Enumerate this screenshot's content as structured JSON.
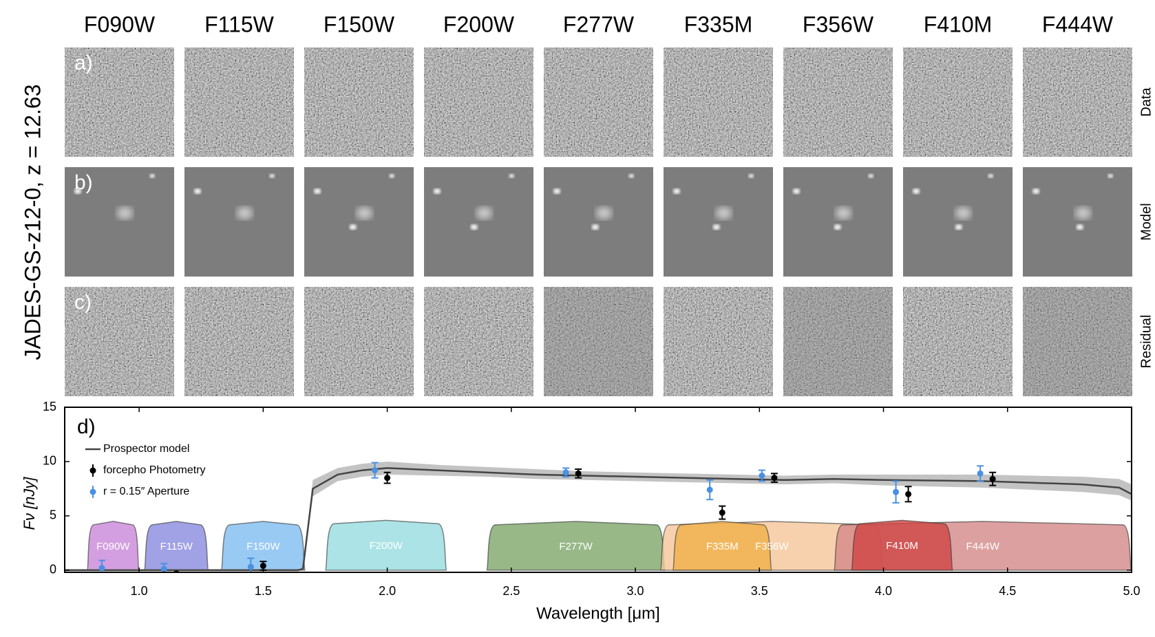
{
  "image_grid": {
    "title": "JADES-GS-z12-0, z = 12.63",
    "columns": [
      "F090W",
      "F115W",
      "F150W",
      "F200W",
      "F277W",
      "F335M",
      "F356W",
      "F410M",
      "F444W"
    ],
    "rows": [
      {
        "panel": "a)",
        "label": "Data"
      },
      {
        "panel": "b)",
        "label": "Model"
      },
      {
        "panel": "c)",
        "label": "Residual"
      }
    ]
  },
  "chart_data": {
    "type": "line",
    "panel": "d)",
    "xlabel": "Wavelength [μm]",
    "ylabel": "Fν [nJy]",
    "xlim": [
      0.7,
      5.0
    ],
    "ylim": [
      -0.2,
      15
    ],
    "xticks": [
      {
        "value": 1,
        "label": "1.0"
      },
      {
        "value": 1.5,
        "label": "1.5"
      },
      {
        "value": 2,
        "label": "2.0"
      },
      {
        "value": 2.5,
        "label": "2.5"
      },
      {
        "value": 3,
        "label": "3.0"
      },
      {
        "value": 3.5,
        "label": "3.5"
      },
      {
        "value": 4,
        "label": "4.0"
      },
      {
        "value": 4.5,
        "label": "4.5"
      },
      {
        "value": 5,
        "label": "5.0"
      }
    ],
    "yticks": [
      0,
      5,
      10,
      15
    ],
    "series": [
      {
        "name": "Prospector model",
        "color": "#444444",
        "x": [
          0.7,
          1.0,
          1.5,
          1.64,
          1.66,
          1.7,
          1.8,
          1.9,
          2.0,
          2.2,
          2.4,
          2.6,
          2.8,
          3.0,
          3.2,
          3.4,
          3.6,
          3.8,
          4.0,
          4.4,
          4.8,
          4.95,
          5.0
        ],
        "values": [
          0,
          0,
          0,
          0,
          0.1,
          7.5,
          8.8,
          9.2,
          9.4,
          9.2,
          9.0,
          8.8,
          8.7,
          8.6,
          8.5,
          8.4,
          8.3,
          8.4,
          8.3,
          8.2,
          7.9,
          7.6,
          7.0
        ],
        "lower": [
          -0.1,
          -0.1,
          -0.1,
          -0.1,
          0,
          6.8,
          8.2,
          8.6,
          8.8,
          8.7,
          8.6,
          8.4,
          8.3,
          8.2,
          8.1,
          8.0,
          7.9,
          8.0,
          7.8,
          7.6,
          7.2,
          6.9,
          6.4
        ],
        "upper": [
          0.1,
          0.1,
          0.1,
          0.1,
          0.3,
          8.3,
          9.4,
          9.8,
          10.0,
          9.7,
          9.5,
          9.3,
          9.1,
          9.0,
          8.9,
          8.8,
          8.7,
          8.8,
          8.8,
          8.8,
          8.6,
          8.4,
          7.9
        ]
      },
      {
        "name": "forcepho Photometry",
        "color": "#000000",
        "x": [
          1.15,
          1.5,
          2.0,
          2.77,
          3.35,
          3.56,
          4.1,
          4.44
        ],
        "values": [
          -0.3,
          0.4,
          8.5,
          8.9,
          5.3,
          8.5,
          7.0,
          8.4
        ],
        "errors": [
          0.1,
          0.4,
          0.5,
          0.4,
          0.6,
          0.4,
          0.7,
          0.6
        ]
      },
      {
        "name": "r = 0.15″ Aperture",
        "color": "#4a90e2",
        "x": [
          0.85,
          1.1,
          1.45,
          1.95,
          2.72,
          3.3,
          3.51,
          4.05,
          4.39
        ],
        "values": [
          0.2,
          0.1,
          0.3,
          9.2,
          9.0,
          7.4,
          8.7,
          7.2,
          8.9
        ],
        "errors": [
          0.7,
          0.5,
          0.8,
          0.7,
          0.4,
          0.9,
          0.5,
          1.0,
          0.7
        ]
      }
    ],
    "filters": [
      {
        "name": "F090W",
        "color": "#c987d9",
        "range": [
          0.79,
          1.0
        ],
        "level": 4.3
      },
      {
        "name": "F115W",
        "color": "#8a8ae0",
        "range": [
          1.02,
          1.28
        ],
        "level": 4.3
      },
      {
        "name": "F150W",
        "color": "#7fbdf0",
        "range": [
          1.33,
          1.67
        ],
        "level": 4.3
      },
      {
        "name": "F200W",
        "color": "#96dce0",
        "range": [
          1.75,
          2.24
        ],
        "level": 4.4
      },
      {
        "name": "F277W",
        "color": "#7ea66a",
        "range": [
          2.4,
          3.12
        ],
        "level": 4.3
      },
      {
        "name": "F356W",
        "color": "#f5c59a",
        "range": [
          3.1,
          4.0
        ],
        "level": 4.3
      },
      {
        "name": "F335M",
        "color": "#f0b048",
        "range": [
          3.15,
          3.55
        ],
        "level": 4.3
      },
      {
        "name": "F444W",
        "color": "#d48888",
        "range": [
          3.8,
          5.0
        ],
        "level": 4.3
      },
      {
        "name": "F410M",
        "color": "#d04545",
        "range": [
          3.87,
          4.28
        ],
        "level": 4.4
      }
    ]
  }
}
